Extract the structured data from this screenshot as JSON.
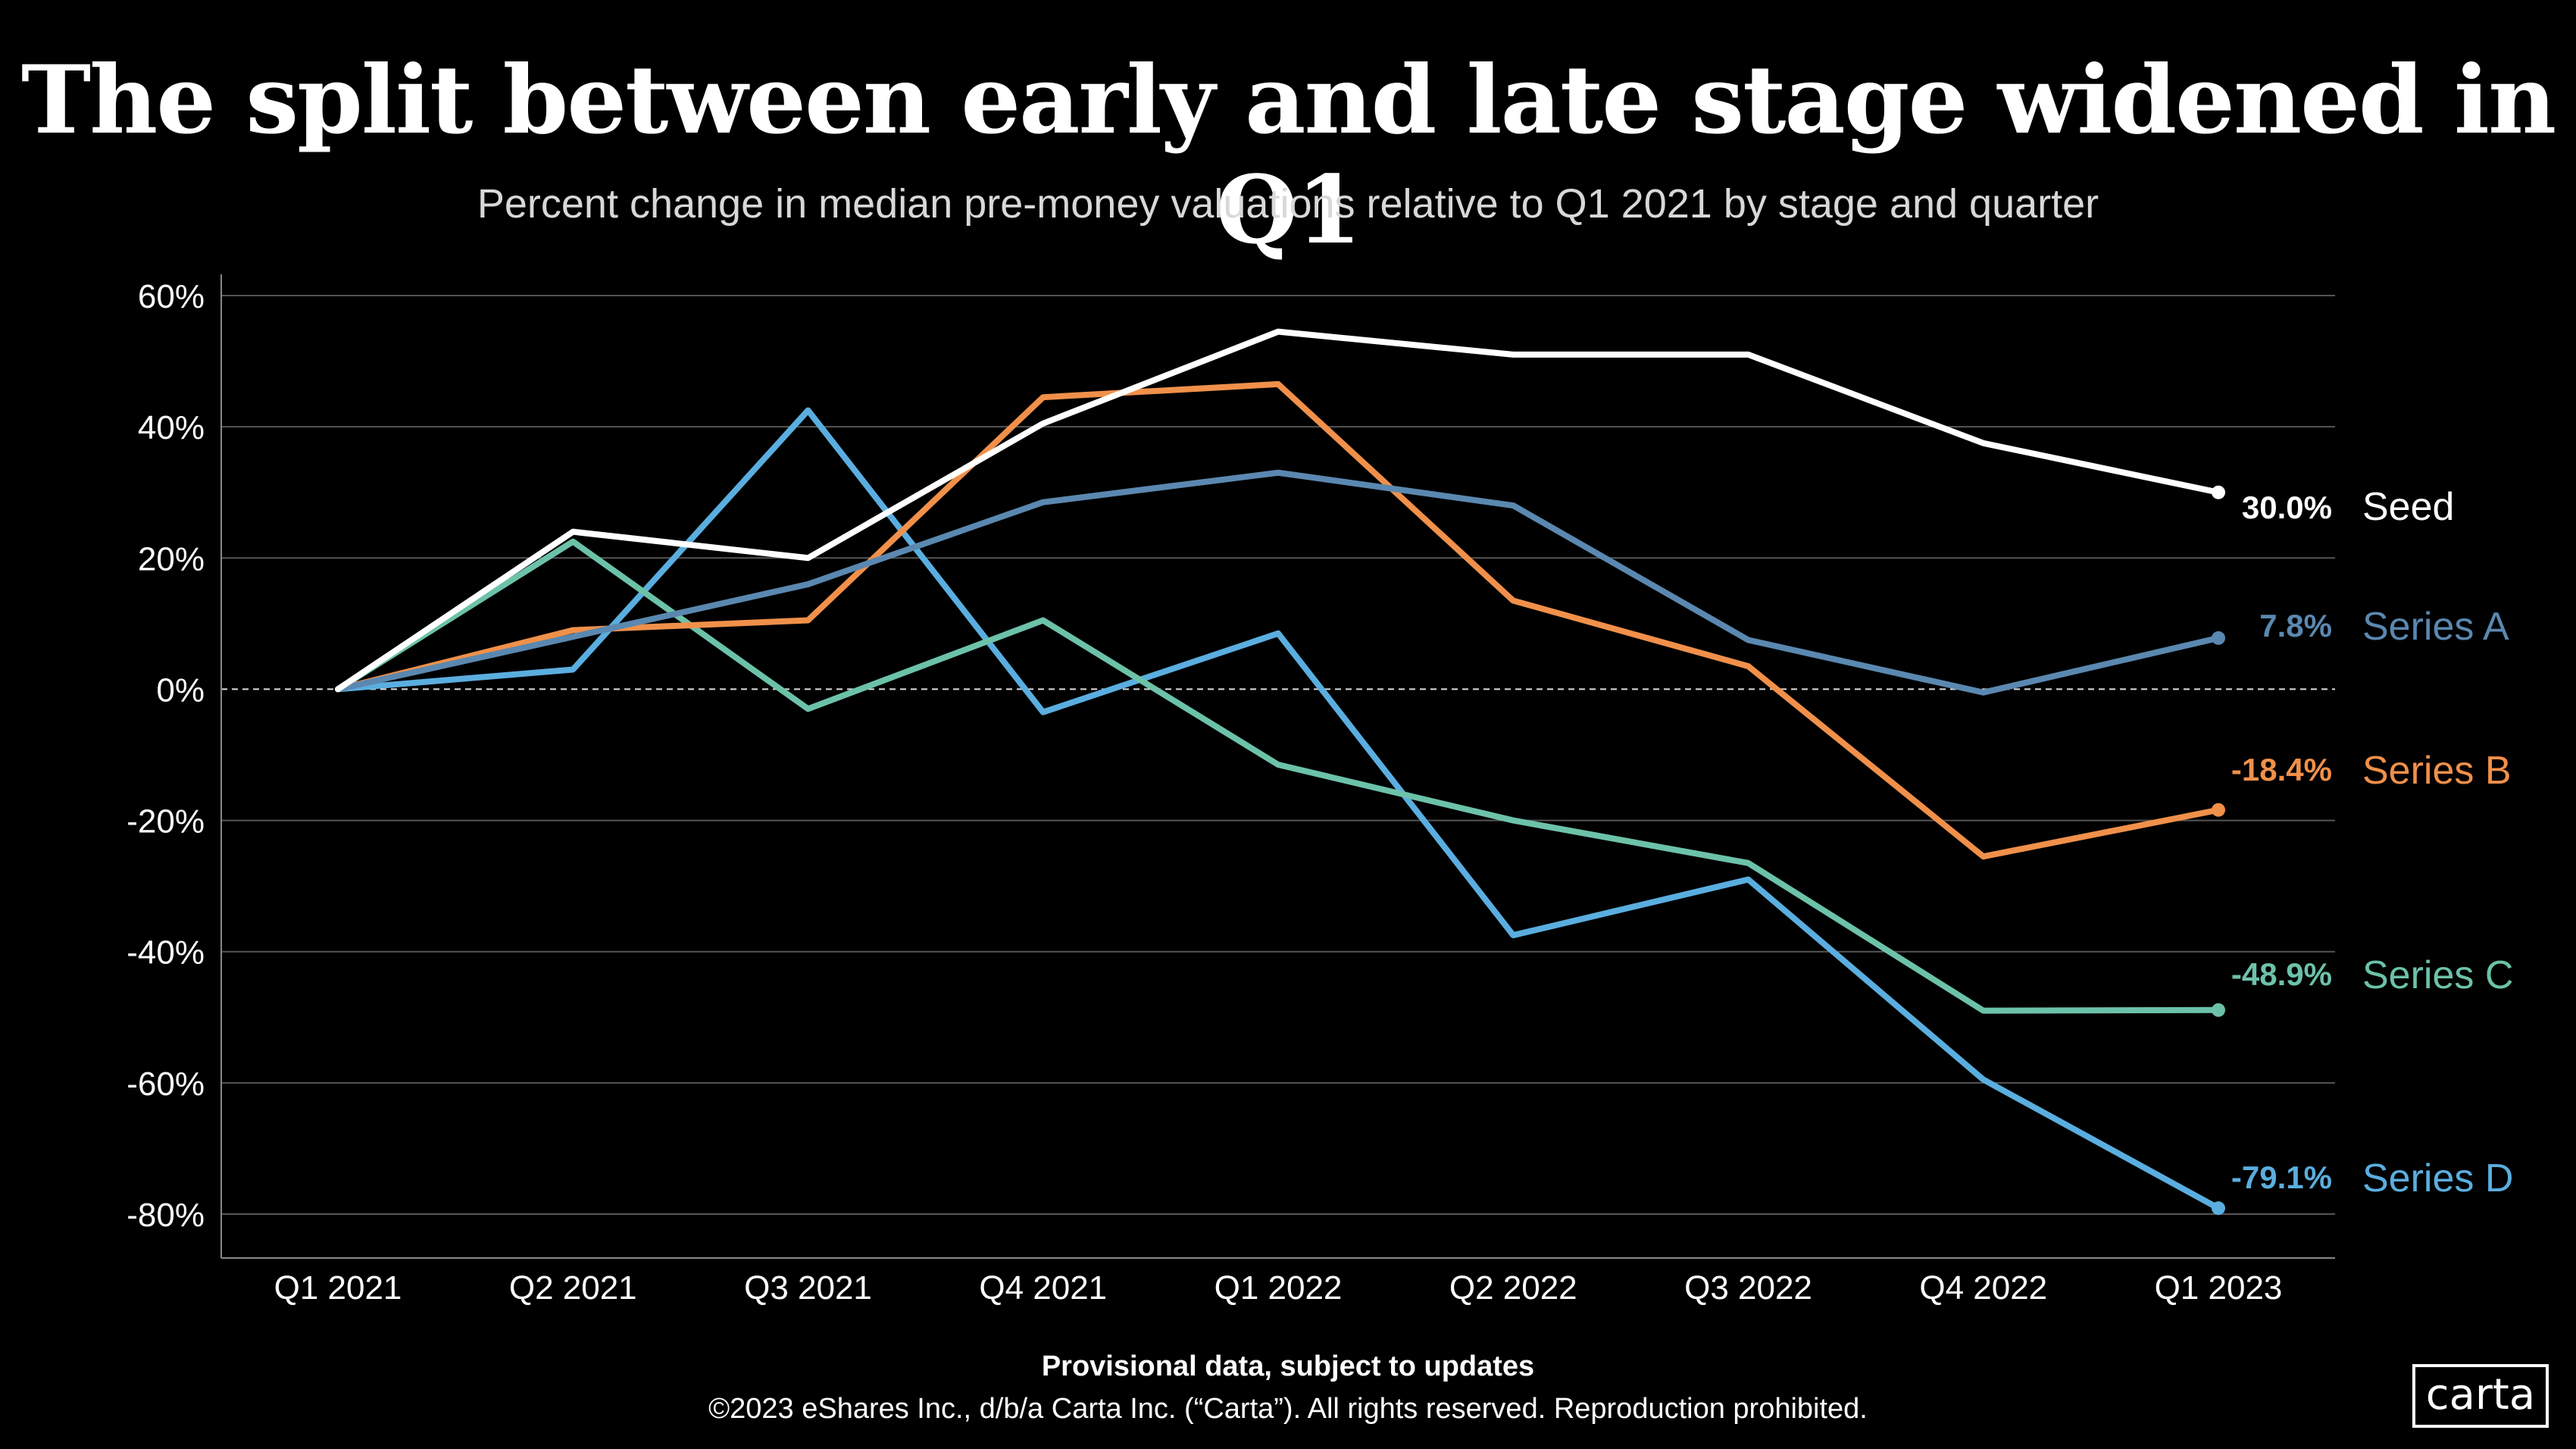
{
  "header": {
    "title": "The split between early and late stage widened in Q1",
    "subtitle": "Percent change in median pre-money valuations relative to Q1 2021 by stage and quarter"
  },
  "footer": {
    "note": "Provisional data, subject to updates",
    "copyright": "©2023 eShares Inc., d/b/a Carta Inc. (“Carta”). All rights reserved. Reproduction prohibited.",
    "logo": "carta"
  },
  "chart_data": {
    "type": "line",
    "title": "The split between early and late stage widened in Q1",
    "subtitle": "Percent change in median pre-money valuations relative to Q1 2021 by stage and quarter",
    "categories": [
      "Q1 2021",
      "Q2 2021",
      "Q3 2021",
      "Q4 2021",
      "Q1 2022",
      "Q2 2022",
      "Q3 2022",
      "Q4 2022",
      "Q1 2023"
    ],
    "ylim": [
      -80,
      60
    ],
    "yticks": [
      60,
      40,
      20,
      0,
      -20,
      -40,
      -60,
      -80
    ],
    "ytick_labels": [
      "60%",
      "40%",
      "20%",
      "0%",
      "-20%",
      "-40%",
      "-60%",
      "-80%"
    ],
    "grid": true,
    "series": [
      {
        "name": "Seed",
        "color": "#ffffff",
        "end_label": "30.0%",
        "values": [
          0,
          24,
          20,
          40.5,
          54.5,
          51,
          51,
          37.5,
          30.0
        ]
      },
      {
        "name": "Series A",
        "color": "#5a88b0",
        "end_label": "7.8%",
        "values": [
          0,
          8,
          16,
          28.5,
          33,
          28,
          7.5,
          -0.5,
          7.8
        ]
      },
      {
        "name": "Series B",
        "color": "#f0904a",
        "end_label": "-18.4%",
        "values": [
          0,
          9,
          10.5,
          44.5,
          46.5,
          13.5,
          3.5,
          -25.5,
          -18.4
        ]
      },
      {
        "name": "Series C",
        "color": "#6cc2a8",
        "end_label": "-48.9%",
        "values": [
          0,
          22.5,
          -3,
          10.5,
          -11.5,
          -20,
          -26.5,
          -49,
          -48.9
        ]
      },
      {
        "name": "Series D",
        "color": "#5aaedf",
        "end_label": "-79.1%",
        "values": [
          0,
          3,
          42.5,
          -3.5,
          8.5,
          -37.5,
          -29,
          -59.5,
          -79.1
        ]
      }
    ]
  }
}
